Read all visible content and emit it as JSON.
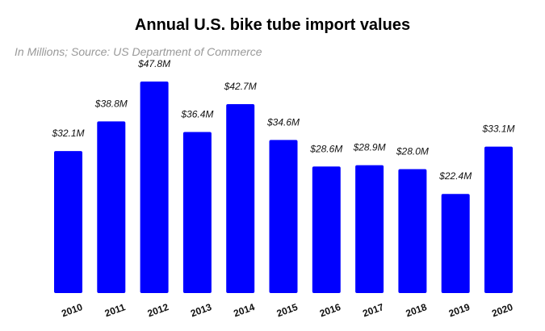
{
  "chart_data": {
    "type": "bar",
    "title": "Annual U.S. bike tube import values",
    "subtitle": "In Millions; Source: US Department of Commerce",
    "categories": [
      "2010",
      "2011",
      "2012",
      "2013",
      "2014",
      "2015",
      "2016",
      "2017",
      "2018",
      "2019",
      "2020"
    ],
    "values": [
      32.1,
      38.8,
      47.8,
      36.4,
      42.7,
      34.6,
      28.6,
      28.9,
      28.0,
      22.4,
      33.1
    ],
    "data_labels": [
      "$32.1M",
      "$38.8M",
      "$47.8M",
      "$36.4M",
      "$42.7M",
      "$34.6M",
      "$28.6M",
      "$28.9M",
      "$28.0M",
      "$22.4M",
      "$33.1M"
    ],
    "xlabel": "",
    "ylabel": "",
    "ylim": [
      0,
      48
    ],
    "grid": false,
    "legend": "none",
    "bar_color": "#0000FF"
  }
}
